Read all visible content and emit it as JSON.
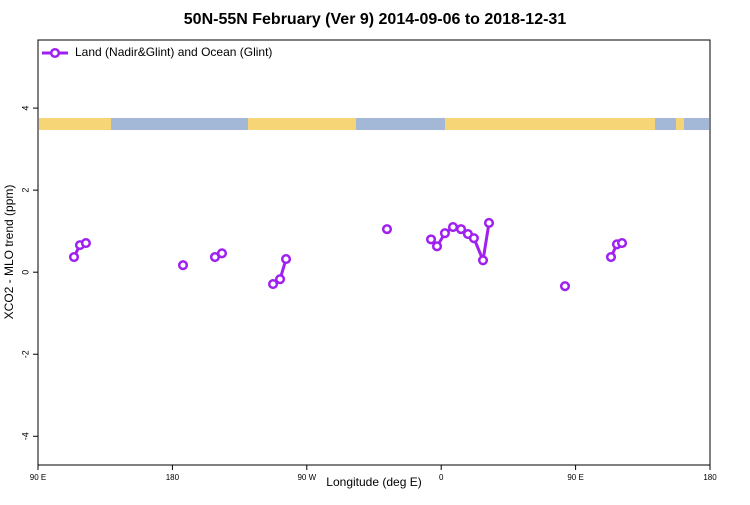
{
  "chart_data": {
    "type": "line",
    "title": "50N-55N February (Ver 9)   2014-09-06 to 2018-12-31",
    "x_label": "Longitude (deg E)",
    "y_label": "XCO2 - MLO trend (ppm)",
    "x": [
      114.1,
      118.1,
      122.1,
      null,
      187.1,
      null,
      208.5,
      213.2,
      null,
      247.4,
      252.1,
      256.1,
      null,
      323.7,
      null,
      353.2,
      357.2,
      362.5,
      367.9,
      373.3,
      377.9,
      381.9,
      388.0,
      392.0,
      null,
      442.9,
      null,
      473.7,
      477.7,
      481.1
    ],
    "series": [
      {
        "name": "Land (Nadir&Glint) and Ocean (Glint)",
        "color": "#a020f0",
        "values": [
          0.37,
          0.66,
          0.71,
          null,
          0.17,
          null,
          0.37,
          0.46,
          null,
          -0.29,
          -0.17,
          0.32,
          null,
          1.05,
          null,
          0.8,
          0.63,
          0.95,
          1.1,
          1.05,
          0.93,
          0.83,
          0.29,
          1.2,
          null,
          -0.34,
          null,
          0.37,
          0.68,
          0.71
        ]
      }
    ],
    "xlim": [
      90,
      540
    ],
    "xticks": [
      {
        "value": 90,
        "label": "90 E"
      },
      {
        "value": 180,
        "label": "180"
      },
      {
        "value": 270,
        "label": "90 W"
      },
      {
        "value": 360,
        "label": "0"
      },
      {
        "value": 450,
        "label": "90 E"
      },
      {
        "value": 540,
        "label": "180"
      }
    ],
    "ylim": [
      -4.7,
      5.66
    ],
    "yticks": [
      -4,
      -2,
      0,
      2,
      4
    ],
    "legend": "top-left"
  }
}
